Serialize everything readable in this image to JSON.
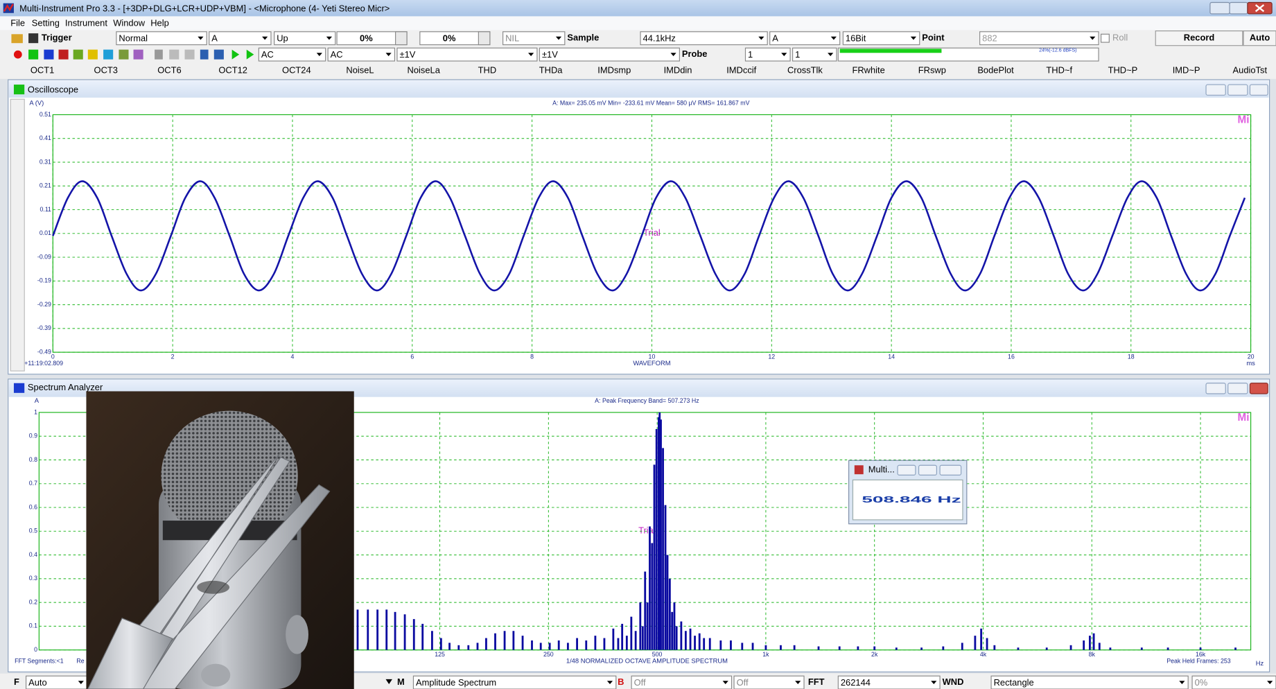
{
  "window": {
    "title": "Multi-Instrument Pro 3.3  -  [+3DP+DLG+LCR+UDP+VBM]  -  <Microphone (4- Yeti Stereo Micr>"
  },
  "menu": [
    "File",
    "Setting",
    "Instrument",
    "Window",
    "Help"
  ],
  "toolbar1": [
    "Trigger",
    "Normal",
    "A",
    "Up",
    "0%",
    "0%",
    "NIL",
    "Sample",
    "44.1kHz",
    "A",
    "16Bit",
    "Point",
    "882",
    "Roll",
    "Record",
    "Auto"
  ],
  "toolbar2": [
    "AC",
    "AC",
    "±1V",
    "±1V",
    "Probe",
    "1",
    "1",
    "24%(-12.6 dBFS)"
  ],
  "buttons": [
    "OCT1",
    "OCT3",
    "OCT6",
    "OCT12",
    "OCT24",
    "NoiseL",
    "NoiseLa",
    "THD",
    "THDa",
    "IMDsmp",
    "IMDdin",
    "IMDccif",
    "CrossTlk",
    "FRwhite",
    "FRswp",
    "BodePlot",
    "THD~f",
    "THD~P",
    "IMD~P",
    "AudioTst"
  ],
  "bottom_bar": [
    "F",
    "Auto",
    "M",
    "Amplitude Spectrum",
    "B",
    "Off",
    "Off",
    "FFT",
    "262144",
    "WND",
    "Rectangle",
    "0%"
  ],
  "popup": {
    "title": "Multi...",
    "reading": "508.846 Hz"
  },
  "chart_data": [
    {
      "type": "line",
      "window_title": "Oscilloscope",
      "ylabel": "A (V)",
      "xlabel": "WAVEFORM",
      "x_unit": "ms",
      "annotations": {
        "stats": "A: Max=   235.05  mV  Min=   -233.61  mV  Mean=        580   µV  RMS=   161.867  mV",
        "watermark": "Mi",
        "trial": "Trial",
        "timestamp": "+11:19:02.809"
      },
      "color": "#1414a8",
      "grid": true,
      "grid_color": "#19b419",
      "xlim": [
        0,
        20
      ],
      "xticks": [
        0,
        2,
        4,
        6,
        8,
        10,
        12,
        14,
        16,
        18,
        20
      ],
      "ylim": [
        -0.49,
        0.51
      ],
      "yticks": [
        0.51,
        0.41,
        0.31,
        0.21,
        0.11,
        0.01,
        -0.09,
        -0.19,
        -0.29,
        -0.39,
        -0.49
      ],
      "x": [
        0,
        0.25,
        0.49,
        0.74,
        0.98,
        1.23,
        1.47,
        1.72,
        1.97,
        2.21,
        2.46,
        2.7,
        2.95,
        3.19,
        3.44,
        3.69,
        3.93,
        4.18,
        4.42,
        4.67,
        4.91,
        5.16,
        5.41,
        5.65,
        5.9,
        6.14,
        6.39,
        6.63,
        6.88,
        7.13,
        7.37,
        7.62,
        7.86,
        8.11,
        8.35,
        8.6,
        8.84,
        9.09,
        9.34,
        9.58,
        9.83,
        10.07,
        10.32,
        10.56,
        10.81,
        11.06,
        11.3,
        11.55,
        11.79,
        12.04,
        12.28,
        12.53,
        12.78,
        13.02,
        13.27,
        13.51,
        13.76,
        14.0,
        14.25,
        14.5,
        14.74,
        14.99,
        15.23,
        15.48,
        15.72,
        15.97,
        16.21,
        16.46,
        16.71,
        16.95,
        17.2,
        17.44,
        17.69,
        17.94,
        18.18,
        18.43,
        18.67,
        18.92,
        19.16,
        19.41,
        19.65,
        19.9
      ],
      "values": [
        0,
        0.16,
        0.23,
        0.16,
        0,
        -0.16,
        -0.23,
        -0.16,
        0,
        0.16,
        0.23,
        0.16,
        0,
        -0.16,
        -0.23,
        -0.16,
        0,
        0.16,
        0.23,
        0.16,
        0,
        -0.16,
        -0.23,
        -0.16,
        0,
        0.16,
        0.23,
        0.16,
        0,
        -0.16,
        -0.23,
        -0.16,
        0,
        0.16,
        0.23,
        0.16,
        0,
        -0.16,
        -0.23,
        -0.16,
        0,
        0.16,
        0.23,
        0.16,
        0,
        -0.16,
        -0.23,
        -0.16,
        0,
        0.16,
        0.23,
        0.16,
        0,
        -0.16,
        -0.23,
        -0.16,
        0,
        0.16,
        0.23,
        0.16,
        0,
        -0.16,
        -0.23,
        -0.16,
        0,
        0.16,
        0.23,
        0.16,
        0,
        -0.16,
        -0.23,
        -0.16,
        0,
        0.16,
        0.23,
        0.16,
        0,
        -0.16,
        -0.23,
        -0.16,
        0,
        0.16
      ]
    },
    {
      "type": "bar",
      "window_title": "Spectrum Analyzer",
      "ylabel": "A",
      "xlabel": "1/48 NORMALIZED OCTAVE AMPLITUDE SPECTRUM",
      "x_unit": "Hz",
      "annotations": {
        "stats": "A: Peak Frequency Band=       507.273   Hz",
        "watermark": "Mi",
        "trial": "Trial",
        "segments": "FFT Segments:<1",
        "cut": "Re",
        "frames": "Peak Held Frames: 253"
      },
      "color": "#0a0aa0",
      "grid": true,
      "grid_color": "#19b419",
      "xscale": "log",
      "xlim": [
        9.7,
        22050
      ],
      "xticks": [
        125,
        250,
        500,
        {
          "value": 1000,
          "label": "1k"
        },
        {
          "value": 2000,
          "label": "2k"
        },
        {
          "value": 4000,
          "label": "4k"
        },
        {
          "value": 8000,
          "label": "8k"
        },
        {
          "value": 16000,
          "label": "16k"
        }
      ],
      "ylim": [
        0,
        1
      ],
      "yticks": [
        0,
        0.1,
        0.2,
        0.3,
        0.4,
        0.5,
        0.6,
        0.7,
        0.8,
        0.9,
        1
      ],
      "x": [
        74,
        79,
        84,
        89,
        94,
        100,
        106,
        112,
        119,
        126,
        133,
        141,
        150,
        159,
        168,
        178,
        189,
        200,
        212,
        225,
        238,
        252,
        267,
        283,
        300,
        318,
        337,
        357,
        378,
        390,
        400,
        412,
        424,
        436,
        449,
        456,
        463,
        470,
        477,
        484,
        491,
        498,
        505,
        508,
        512,
        519,
        527,
        534,
        542,
        550,
        558,
        566,
        583,
        600,
        618,
        636,
        655,
        674,
        700,
        750,
        800,
        860,
        920,
        1000,
        1100,
        1200,
        1400,
        1600,
        1800,
        2000,
        2300,
        2700,
        3100,
        3500,
        3800,
        3950,
        4100,
        4300,
        5000,
        6000,
        7000,
        7600,
        7900,
        8100,
        8400,
        9000,
        11000,
        13000,
        16000,
        20000
      ],
      "values": [
        0.17,
        0.17,
        0.17,
        0.17,
        0.16,
        0.15,
        0.13,
        0.11,
        0.08,
        0.05,
        0.03,
        0.02,
        0.02,
        0.03,
        0.05,
        0.07,
        0.08,
        0.08,
        0.06,
        0.04,
        0.03,
        0.03,
        0.04,
        0.03,
        0.05,
        0.04,
        0.06,
        0.05,
        0.09,
        0.05,
        0.11,
        0.06,
        0.14,
        0.08,
        0.2,
        0.1,
        0.33,
        0.2,
        0.52,
        0.45,
        0.78,
        0.93,
        0.98,
        1.0,
        0.97,
        0.85,
        0.61,
        0.4,
        0.3,
        0.16,
        0.2,
        0.1,
        0.12,
        0.08,
        0.09,
        0.06,
        0.07,
        0.05,
        0.05,
        0.04,
        0.04,
        0.03,
        0.03,
        0.02,
        0.02,
        0.02,
        0.015,
        0.015,
        0.015,
        0.015,
        0.01,
        0.01,
        0.015,
        0.03,
        0.06,
        0.09,
        0.05,
        0.02,
        0.01,
        0.01,
        0.02,
        0.04,
        0.06,
        0.07,
        0.03,
        0.01,
        0.01,
        0.01,
        0.01,
        0.01
      ]
    }
  ]
}
